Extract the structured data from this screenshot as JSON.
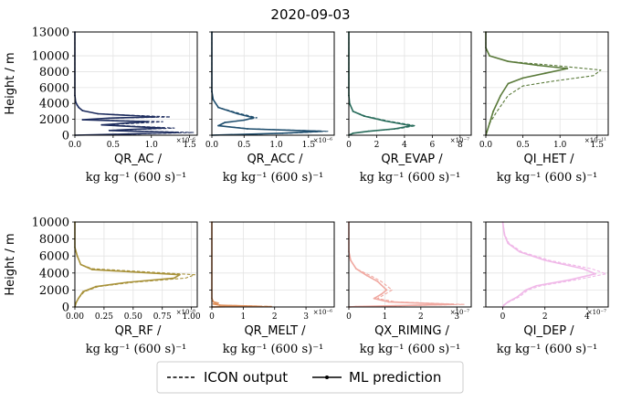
{
  "chart_data": {
    "type": "line",
    "title": "2020-09-03",
    "legend": {
      "placement": "bottom-center",
      "entries": [
        {
          "label": "ICON output",
          "style": "dashed"
        },
        {
          "label": "ML prediction",
          "style": "solid-with-dots"
        }
      ]
    },
    "x_unit_label": "kg kg⁻¹ (600 s)⁻¹",
    "grid": true,
    "panels": [
      {
        "name": "QR_AC",
        "row": 0,
        "col": 0,
        "color": "#1d2c5e",
        "xlim": [
          0,
          1.6
        ],
        "xticks": [
          0,
          0.5,
          1.0,
          1.5
        ],
        "xticklabels": [
          "0.0",
          "0.5",
          "1.0",
          "1.5"
        ],
        "exponent": "×10⁻⁶",
        "ylim": [
          0,
          13000
        ],
        "yticks": [
          0,
          2000,
          4000,
          6000,
          8000,
          10000,
          13000
        ],
        "ylabel": "Height / m",
        "series": [
          {
            "name": "ICON output",
            "style": "dashed",
            "x": [
              0,
              0,
              0.01,
              0.03,
              0.05,
              0.1,
              0.3,
              1.25,
              0.5,
              0.1,
              1.15,
              0.4,
              1.3,
              0.5,
              1.55,
              0.8,
              0
            ],
            "y": [
              13000,
              5000,
              4200,
              3800,
              3500,
              3100,
              2700,
              2300,
              2150,
              1950,
              1700,
              1300,
              900,
              600,
              350,
              150,
              0
            ]
          },
          {
            "name": "ML prediction",
            "style": "solid",
            "x": [
              0,
              0,
              0.01,
              0.03,
              0.05,
              0.1,
              0.3,
              1.05,
              0.45,
              0.1,
              0.95,
              0.35,
              1.15,
              0.45,
              1.35,
              0.7,
              0
            ],
            "y": [
              13000,
              5000,
              4200,
              3800,
              3500,
              3100,
              2700,
              2300,
              2150,
              1950,
              1700,
              1300,
              900,
              600,
              350,
              150,
              0
            ]
          }
        ]
      },
      {
        "name": "QR_ACC",
        "row": 0,
        "col": 1,
        "color": "#1f4e6e",
        "xlim": [
          0,
          1.9
        ],
        "xticks": [
          0,
          0.5,
          1.0,
          1.5
        ],
        "xticklabels": [
          "0.0",
          "0.5",
          "1.0",
          "1.5"
        ],
        "exponent": "×10⁻⁶",
        "ylim": [
          0,
          13000
        ],
        "yticks": [
          0,
          2000,
          4000,
          6000,
          8000,
          10000,
          13000
        ],
        "series": [
          {
            "name": "ICON output",
            "style": "dashed",
            "x": [
              0,
              0,
              0.02,
              0.1,
              0.45,
              0.7,
              0.5,
              0.2,
              0.1,
              0.6,
              1.8,
              1.2,
              0
            ],
            "y": [
              13000,
              5500,
              4500,
              3500,
              2700,
              2200,
              1900,
              1600,
              1200,
              800,
              500,
              250,
              0
            ]
          },
          {
            "name": "ML prediction",
            "style": "solid",
            "x": [
              0,
              0,
              0.02,
              0.1,
              0.4,
              0.65,
              0.5,
              0.2,
              0.1,
              0.55,
              1.7,
              1.1,
              0
            ],
            "y": [
              13000,
              5500,
              4500,
              3500,
              2700,
              2200,
              1900,
              1600,
              1200,
              800,
              500,
              250,
              0
            ]
          }
        ]
      },
      {
        "name": "QR_EVAP",
        "row": 0,
        "col": 2,
        "color": "#276b5a",
        "xlim": [
          0,
          8.8
        ],
        "xticks": [
          0,
          2,
          4,
          6,
          8
        ],
        "xticklabels": [
          "0",
          "2",
          "4",
          "6",
          "8"
        ],
        "exponent": "×10⁻⁷",
        "ylim": [
          0,
          13000
        ],
        "yticks": [
          0,
          2000,
          4000,
          6000,
          8000,
          10000,
          13000
        ],
        "series": [
          {
            "name": "ICON output",
            "style": "dashed",
            "x": [
              0,
              0,
              0.05,
              0.3,
              1.2,
              2.8,
              4.8,
              3.5,
              1.5,
              0.3,
              0
            ],
            "y": [
              13000,
              5000,
              4000,
              3000,
              2400,
              1800,
              1200,
              800,
              500,
              250,
              0
            ]
          },
          {
            "name": "ML prediction",
            "style": "solid",
            "x": [
              0,
              0,
              0.05,
              0.3,
              1.1,
              2.6,
              4.5,
              3.3,
              1.4,
              0.3,
              0
            ],
            "y": [
              13000,
              5000,
              4000,
              3000,
              2400,
              1800,
              1200,
              800,
              500,
              250,
              0
            ]
          }
        ]
      },
      {
        "name": "QI_HET",
        "row": 0,
        "col": 3,
        "color": "#5a7a3a",
        "xlim": [
          0,
          1.65
        ],
        "xticks": [
          0,
          0.5,
          1.0,
          1.5
        ],
        "xticklabels": [
          "0.0",
          "0.5",
          "1.0",
          "1.5"
        ],
        "exponent": "×10⁻¹¹",
        "ylim": [
          0,
          13000
        ],
        "yticks": [
          0,
          2000,
          4000,
          6000,
          8000,
          10000,
          13000
        ],
        "series": [
          {
            "name": "ICON output",
            "style": "dashed",
            "x": [
              0,
              0,
              0.05,
              0.3,
              0.9,
              1.55,
              1.45,
              0.9,
              0.5,
              0.3,
              0.15,
              0.05,
              0
            ],
            "y": [
              13000,
              11000,
              10000,
              9300,
              8800,
              8200,
              7500,
              6800,
              6200,
              5000,
              3000,
              1500,
              0
            ]
          },
          {
            "name": "ML prediction",
            "style": "solid",
            "x": [
              0,
              0,
              0.05,
              0.3,
              0.7,
              1.1,
              0.8,
              0.5,
              0.3,
              0.2,
              0.1,
              0.05,
              0
            ],
            "y": [
              13000,
              11000,
              10000,
              9300,
              8800,
              8400,
              7800,
              7200,
              6500,
              5000,
              3000,
              1500,
              0
            ]
          }
        ]
      },
      {
        "name": "QR_RF",
        "row": 1,
        "col": 0,
        "color": "#a8923a",
        "xlim": [
          0,
          1.05
        ],
        "xticks": [
          0,
          0.25,
          0.5,
          0.75,
          1.0
        ],
        "xticklabels": [
          "0.00",
          "0.25",
          "0.50",
          "0.75",
          "1.00"
        ],
        "exponent": "×10⁻⁸",
        "ylim": [
          0,
          10000
        ],
        "yticks": [
          0,
          2000,
          4000,
          6000,
          8000,
          10000
        ],
        "ylabel": "Height / m",
        "series": [
          {
            "name": "ICON output",
            "style": "dashed",
            "x": [
              0,
              0,
              0.02,
              0.05,
              0.15,
              1.03,
              0.95,
              0.5,
              0.2,
              0.08,
              0.03,
              0.01,
              0
            ],
            "y": [
              10000,
              7000,
              6000,
              5000,
              4500,
              3800,
              3400,
              2900,
              2400,
              1800,
              1000,
              500,
              0
            ]
          },
          {
            "name": "ML prediction",
            "style": "solid",
            "x": [
              0,
              0,
              0.02,
              0.05,
              0.15,
              0.9,
              0.85,
              0.45,
              0.18,
              0.07,
              0.03,
              0.01,
              0
            ],
            "y": [
              10000,
              7000,
              6000,
              5000,
              4400,
              3800,
              3400,
              2900,
              2400,
              1800,
              1000,
              500,
              0
            ]
          }
        ]
      },
      {
        "name": "QR_MELT",
        "row": 1,
        "col": 1,
        "color": "#e0905a",
        "xlim": [
          0,
          3.9
        ],
        "xticks": [
          0,
          1,
          2,
          3
        ],
        "xticklabels": [
          "0",
          "1",
          "2",
          "3"
        ],
        "exponent": "×10⁻⁶",
        "ylim": [
          0,
          10000
        ],
        "yticks": [
          0,
          2000,
          4000,
          6000,
          8000,
          10000
        ],
        "series": [
          {
            "name": "ICON output",
            "style": "dashed",
            "x": [
              0,
              0,
              0.05,
              0.2,
              0.05,
              0.3,
              1.9,
              0.5,
              0
            ],
            "y": [
              10000,
              1000,
              600,
              450,
              350,
              200,
              80,
              30,
              0
            ]
          },
          {
            "name": "ML prediction",
            "style": "solid",
            "x": [
              0,
              0,
              0.05,
              0.2,
              0.05,
              0.25,
              1.5,
              0.4,
              0
            ],
            "y": [
              10000,
              1000,
              600,
              450,
              350,
              200,
              80,
              30,
              0
            ]
          }
        ]
      },
      {
        "name": "QX_RIMING",
        "row": 1,
        "col": 2,
        "color": "#f0a8a0",
        "xlim": [
          0,
          3.4
        ],
        "xticks": [
          0,
          1,
          2,
          3
        ],
        "xticklabels": [
          "0",
          "1",
          "2",
          "3"
        ],
        "exponent": "×10⁻⁷",
        "ylim": [
          0,
          10000
        ],
        "yticks": [
          0,
          2000,
          4000,
          6000,
          8000,
          10000
        ],
        "series": [
          {
            "name": "ICON output",
            "style": "dashed",
            "x": [
              0,
              0,
              0.05,
              0.2,
              0.6,
              0.9,
              1.2,
              1.0,
              0.8,
              1.3,
              3.2,
              1.5,
              0.2,
              0
            ],
            "y": [
              10000,
              6500,
              5500,
              4500,
              3700,
              3000,
              2000,
              1500,
              1000,
              600,
              300,
              150,
              50,
              0
            ]
          },
          {
            "name": "ML prediction",
            "style": "solid",
            "x": [
              0,
              0,
              0.05,
              0.2,
              0.5,
              0.8,
              1.05,
              0.9,
              0.7,
              1.1,
              2.9,
              1.3,
              0.2,
              0
            ],
            "y": [
              10000,
              6500,
              5500,
              4500,
              3700,
              3000,
              2000,
              1500,
              1000,
              600,
              300,
              150,
              50,
              0
            ]
          }
        ]
      },
      {
        "name": "QI_DEP",
        "row": 1,
        "col": 3,
        "color": "#f0b8e8",
        "xlim": [
          -0.8,
          5.0
        ],
        "xticks": [
          0,
          2,
          4
        ],
        "xticklabels": [
          "0",
          "2",
          "4"
        ],
        "exponent": "×10⁻⁷",
        "ylim": [
          0,
          10000
        ],
        "yticks": [
          0,
          2000,
          4000,
          6000,
          8000,
          10000
        ],
        "series": [
          {
            "name": "ICON output",
            "style": "dashed",
            "x": [
              0,
              0.1,
              0.3,
              0.9,
              2.2,
              4.2,
              4.9,
              3.5,
              1.8,
              1.2,
              0.8,
              0.3,
              0.05,
              0
            ],
            "y": [
              10000,
              8500,
              7500,
              6500,
              5500,
              4500,
              3900,
              3200,
              2500,
              2000,
              1200,
              600,
              200,
              0
            ]
          },
          {
            "name": "ML prediction",
            "style": "solid",
            "x": [
              0,
              0.08,
              0.25,
              0.8,
              2.0,
              3.8,
              4.4,
              3.2,
              1.6,
              1.1,
              0.7,
              0.25,
              0.05,
              0
            ],
            "y": [
              10000,
              8500,
              7500,
              6500,
              5500,
              4500,
              3900,
              3200,
              2500,
              2000,
              1200,
              600,
              200,
              0
            ]
          }
        ]
      }
    ]
  }
}
